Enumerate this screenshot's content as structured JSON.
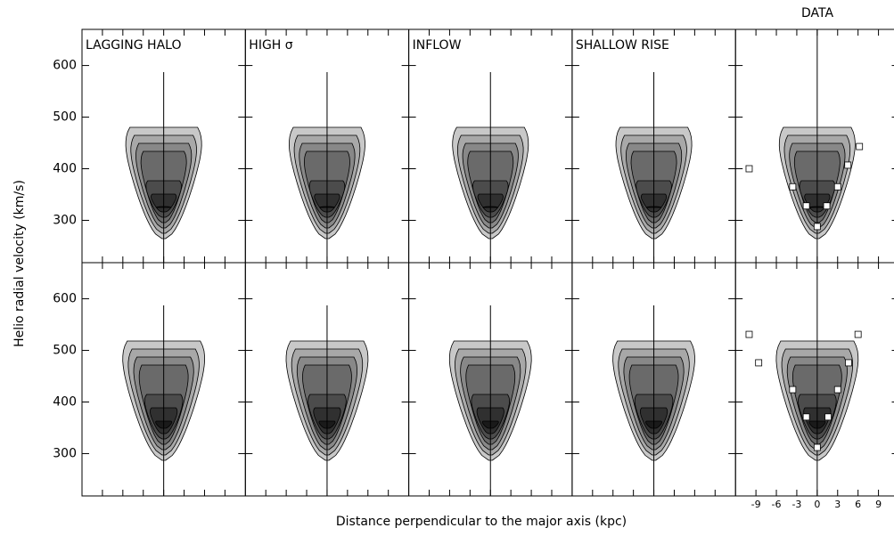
{
  "chart_data": {
    "type": "contour",
    "columns": [
      "LAGGING HALO",
      "HIGH  σ",
      "INFLOW",
      "SHALLOW RISE",
      "DATA"
    ],
    "xlabel": "Distance perpendicular to the major axis (kpc)",
    "ylabel": "Helio radial velocity (km/s)",
    "xlim": [
      -12,
      12
    ],
    "xticks": [
      -9,
      -6,
      -3,
      0,
      3,
      6,
      9
    ],
    "ylim": [
      218,
      670
    ],
    "yticks": [
      300,
      400,
      500,
      600
    ],
    "rows": [
      {
        "points": {
          "x": [
            -10,
            -3.6,
            -1.6,
            0,
            1.4,
            3,
            4.5,
            6.2
          ],
          "y": [
            400,
            365,
            328,
            288,
            328,
            365,
            407,
            443
          ]
        }
      },
      {
        "points": {
          "x": [
            -10,
            -8.6,
            -3.6,
            -1.6,
            0,
            1.6,
            3,
            4.6,
            6
          ],
          "y": [
            531,
            476,
            424,
            371,
            312,
            371,
            424,
            476,
            531
          ]
        }
      }
    ]
  }
}
